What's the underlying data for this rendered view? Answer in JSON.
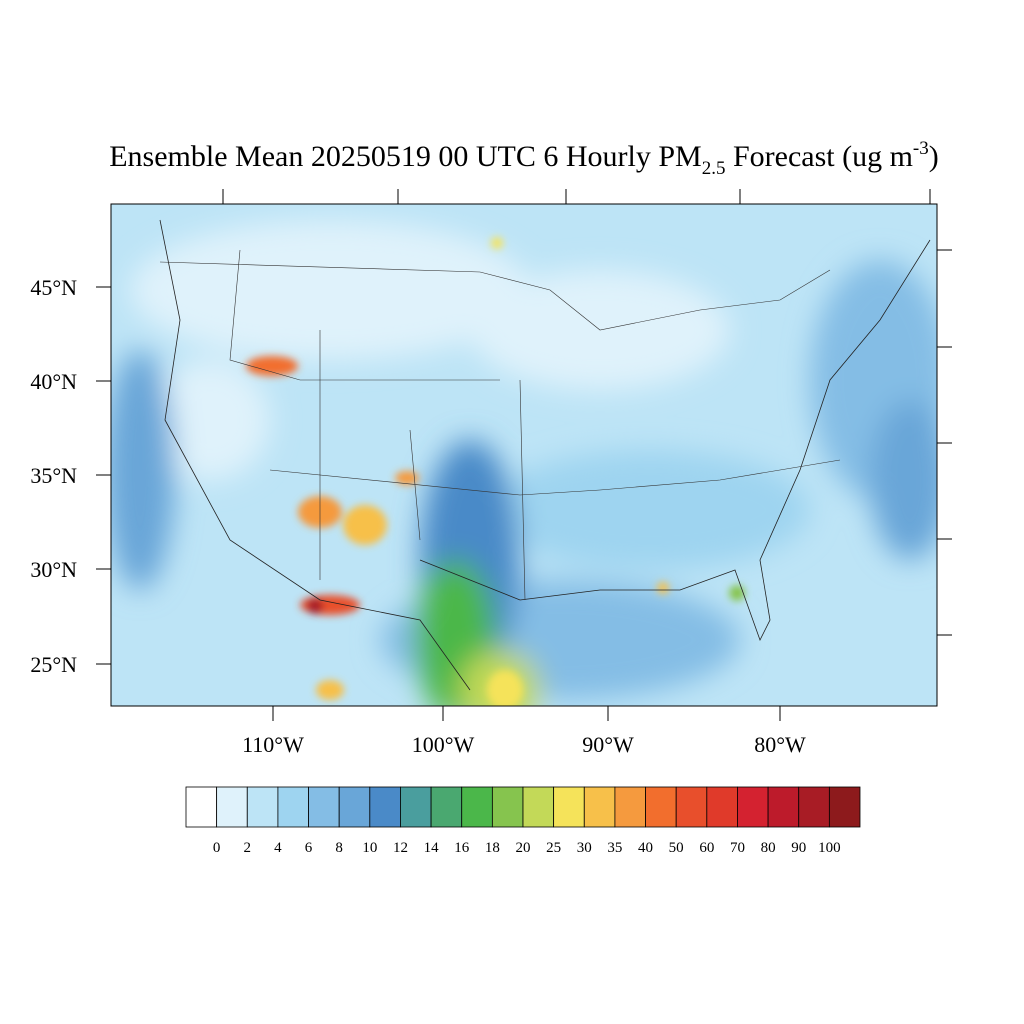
{
  "title": {
    "main": "Ensemble Mean 20250519 00 UTC 6 Hourly PM",
    "subscript": "2.5",
    "after": " Forecast (ug m",
    "superscript": "-3",
    "end": ")"
  },
  "map": {
    "lat_labels": [
      "45°N",
      "40°N",
      "35°N",
      "30°N",
      "25°N"
    ],
    "lon_labels": [
      "110°W",
      "100°W",
      "90°W",
      "80°W"
    ]
  },
  "colorbar": {
    "levels": [
      0,
      2,
      4,
      6,
      8,
      10,
      12,
      14,
      16,
      18,
      20,
      25,
      30,
      35,
      40,
      50,
      60,
      70,
      80,
      90,
      100
    ],
    "colors": [
      "#ffffff",
      "#dff2fb",
      "#bde4f6",
      "#9ed4f0",
      "#84bde5",
      "#69a6d8",
      "#4a8ac8",
      "#4a9e9e",
      "#4aa870",
      "#4bb74a",
      "#86c44e",
      "#c3d958",
      "#f5e35a",
      "#f7c04a",
      "#f59a3e",
      "#f26e2d",
      "#e84f2c",
      "#e03a2a",
      "#d42230",
      "#bd1b2b",
      "#a81c25",
      "#8d1a1c"
    ]
  }
}
